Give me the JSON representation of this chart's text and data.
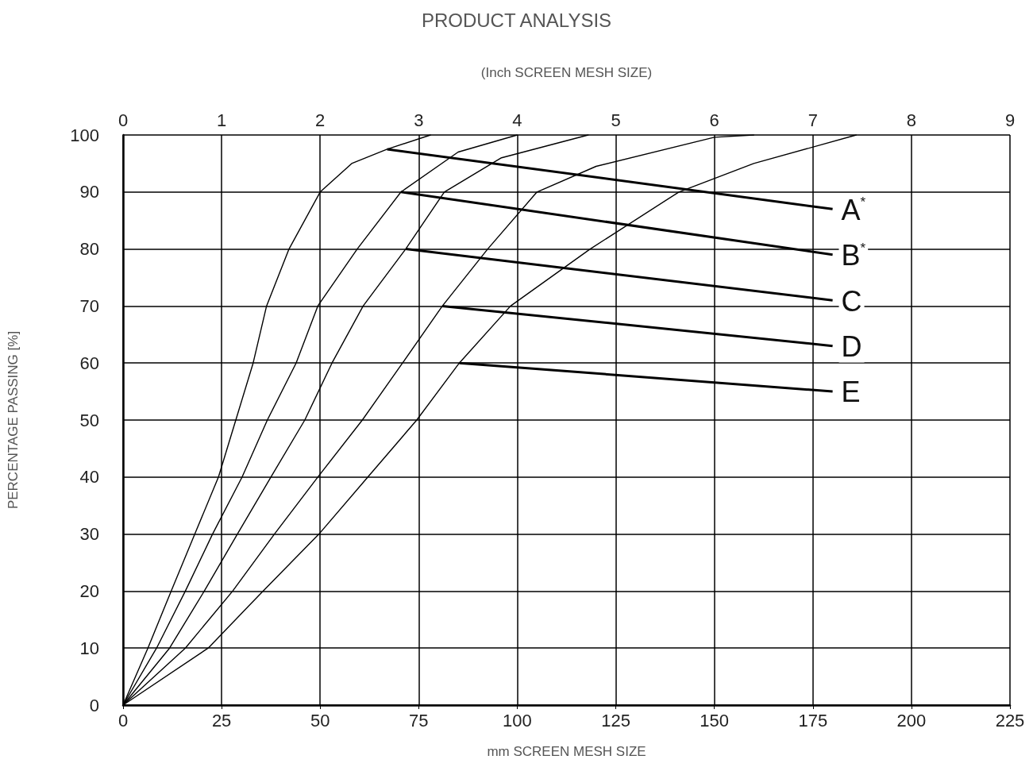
{
  "chart_data": {
    "type": "line",
    "title": "PRODUCT ANALYSIS",
    "x2label": "(Inch SCREEN MESH SIZE)",
    "xlabel": "mm SCREEN MESH SIZE",
    "ylabel": "PERCENTAGE PASSING [%]",
    "xlim": [
      0,
      225
    ],
    "xticks": [
      0,
      25,
      50,
      75,
      100,
      125,
      150,
      175,
      200,
      225
    ],
    "x2lim": [
      0,
      9
    ],
    "x2ticks": [
      0,
      1,
      2,
      3,
      4,
      5,
      6,
      7,
      8,
      9
    ],
    "ylim": [
      0,
      100
    ],
    "yticks": [
      0,
      10,
      20,
      30,
      40,
      50,
      60,
      70,
      80,
      90,
      100
    ],
    "grid": true,
    "legend": false,
    "marker": "none",
    "line_style": "solid",
    "series": [
      {
        "name": "A$^{*}$",
        "color": "#000000",
        "x": [
          0,
          6.3,
          12.2,
          18.2,
          24.2,
          28.6,
          33,
          36.4,
          42.1,
          50,
          58,
          67,
          78
        ],
        "values": [
          0,
          10,
          20,
          30,
          40,
          50,
          60,
          70,
          80,
          90,
          95,
          97.5,
          100
        ]
      },
      {
        "name": "B$^{*}$",
        "color": "#000000",
        "x": [
          0,
          8.5,
          15.8,
          22.7,
          30.2,
          36.6,
          43.9,
          49.4,
          59.4,
          70.5,
          85,
          100
        ],
        "values": [
          0,
          10,
          20,
          30,
          40,
          50,
          60,
          70,
          80,
          90,
          97,
          100
        ]
      },
      {
        "name": "C",
        "color": "#000000",
        "x": [
          0,
          11.8,
          20.6,
          29,
          37.5,
          46.1,
          53,
          60.9,
          71.7,
          81.5,
          96,
          118
        ],
        "values": [
          0,
          10,
          20,
          30,
          40,
          50,
          60,
          70,
          80,
          90,
          96,
          100
        ]
      },
      {
        "name": "D",
        "color": "#000000",
        "x": [
          0,
          15.8,
          27.8,
          38.4,
          49.4,
          60.7,
          70.9,
          81,
          92.5,
          105,
          120,
          150,
          160
        ],
        "values": [
          0,
          10,
          20,
          30,
          40,
          50,
          60,
          70,
          80,
          90,
          94.5,
          99.6,
          100
        ]
      },
      {
        "name": "E",
        "color": "#000000",
        "x": [
          0,
          21.6,
          35.5,
          49.7,
          62.1,
          74.5,
          85.3,
          98.3,
          118.5,
          141,
          160,
          186
        ],
        "values": [
          0,
          10,
          20,
          30,
          40,
          50,
          60,
          70,
          80,
          90,
          95,
          100
        ]
      }
    ]
  }
}
